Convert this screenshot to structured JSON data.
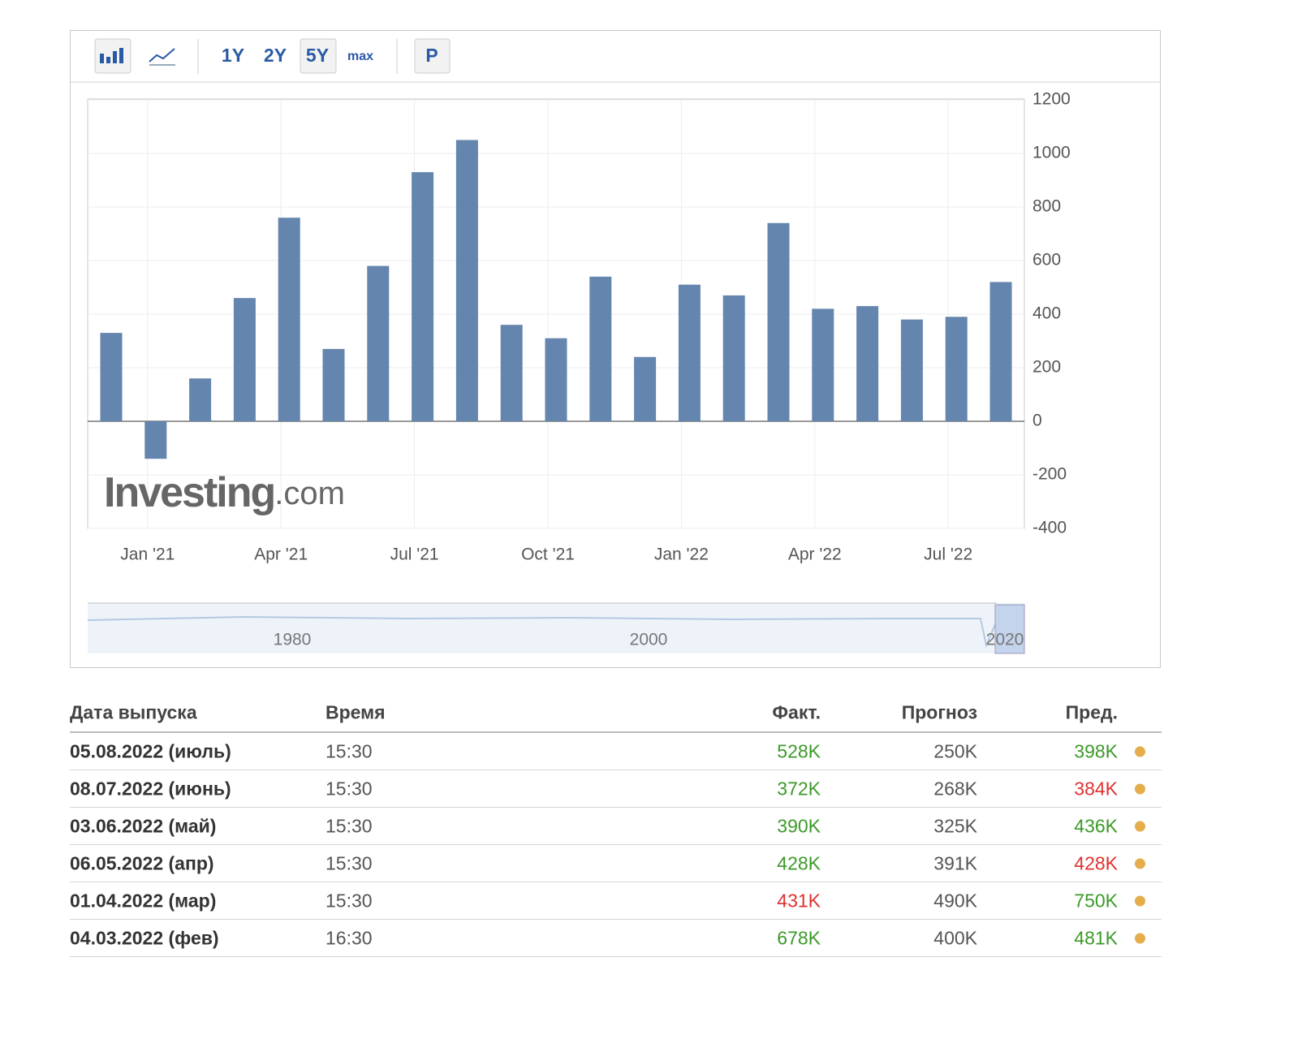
{
  "toolbar": {
    "ranges": [
      "1Y",
      "2Y",
      "5Y",
      "max"
    ],
    "extra": "P"
  },
  "chart_data": {
    "type": "bar",
    "color": "#6485ae",
    "categories": [
      null,
      "Jan '21",
      null,
      null,
      "Apr '21",
      null,
      null,
      "Jul '21",
      null,
      null,
      "Oct '21",
      null,
      null,
      "Jan '22",
      null,
      null,
      "Apr '22",
      null,
      null,
      "Jul '22",
      null
    ],
    "values": [
      330,
      -140,
      160,
      460,
      760,
      270,
      580,
      930,
      1050,
      360,
      310,
      540,
      240,
      510,
      470,
      740,
      420,
      430,
      380,
      390,
      520
    ],
    "ylim": [
      -400,
      1200
    ],
    "yticks": [
      -400,
      -200,
      0,
      200,
      400,
      600,
      800,
      1000,
      1200
    ],
    "grid": true,
    "watermark": [
      "Investing",
      ".com"
    ]
  },
  "navigator": {
    "labels": [
      "1980",
      "2000",
      "2020"
    ]
  },
  "table": {
    "headers": [
      "Дата выпуска",
      "Время",
      "Факт.",
      "Прогноз",
      "Пред."
    ],
    "rows": [
      {
        "date": "05.08.2022 (июль)",
        "time": "15:30",
        "actual": "528K",
        "forecast": "250K",
        "previous": "398K",
        "actual_color": "#3b9a28",
        "previous_color": "#3b9a28"
      },
      {
        "date": "08.07.2022 (июнь)",
        "time": "15:30",
        "actual": "372K",
        "forecast": "268K",
        "previous": "384K",
        "actual_color": "#3b9a28",
        "previous_color": "#e0312f"
      },
      {
        "date": "03.06.2022 (май)",
        "time": "15:30",
        "actual": "390K",
        "forecast": "325K",
        "previous": "436K",
        "actual_color": "#3b9a28",
        "previous_color": "#3b9a28"
      },
      {
        "date": "06.05.2022 (апр)",
        "time": "15:30",
        "actual": "428K",
        "forecast": "391K",
        "previous": "428K",
        "actual_color": "#3b9a28",
        "previous_color": "#e0312f"
      },
      {
        "date": "01.04.2022 (мар)",
        "time": "15:30",
        "actual": "431K",
        "forecast": "490K",
        "previous": "750K",
        "actual_color": "#e0312f",
        "previous_color": "#3b9a28"
      },
      {
        "date": "04.03.2022 (фев)",
        "time": "16:30",
        "actual": "678K",
        "forecast": "400K",
        "previous": "481K",
        "actual_color": "#3b9a28",
        "previous_color": "#3b9a28"
      }
    ]
  }
}
